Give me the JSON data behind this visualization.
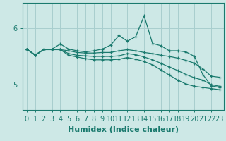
{
  "background_color": "#cde8e6",
  "grid_color": "#a8cece",
  "line_color": "#1a7a6e",
  "xlabel": "Humidex (Indice chaleur)",
  "xlabel_fontsize": 8,
  "tick_fontsize": 7,
  "yticks": [
    5,
    6
  ],
  "ylim": [
    4.55,
    6.45
  ],
  "xlim": [
    -0.5,
    23.5
  ],
  "xticks": [
    0,
    1,
    2,
    3,
    4,
    5,
    6,
    7,
    8,
    9,
    10,
    11,
    12,
    13,
    14,
    15,
    16,
    17,
    18,
    19,
    20,
    21,
    22,
    23
  ],
  "series": [
    [
      5.63,
      5.53,
      5.62,
      5.63,
      5.72,
      5.63,
      5.6,
      5.58,
      5.6,
      5.63,
      5.7,
      5.87,
      5.77,
      5.85,
      6.22,
      5.73,
      5.69,
      5.6,
      5.6,
      5.58,
      5.5,
      5.18,
      4.98,
      4.95
    ],
    [
      5.63,
      5.52,
      5.62,
      5.62,
      5.62,
      5.6,
      5.57,
      5.56,
      5.56,
      5.57,
      5.57,
      5.6,
      5.62,
      5.6,
      5.57,
      5.55,
      5.52,
      5.5,
      5.47,
      5.43,
      5.38,
      5.28,
      5.15,
      5.13
    ],
    [
      5.63,
      5.52,
      5.62,
      5.62,
      5.62,
      5.55,
      5.52,
      5.51,
      5.5,
      5.5,
      5.5,
      5.51,
      5.55,
      5.53,
      5.49,
      5.44,
      5.38,
      5.31,
      5.25,
      5.18,
      5.12,
      5.08,
      5.0,
      4.97
    ],
    [
      5.63,
      5.52,
      5.62,
      5.62,
      5.62,
      5.52,
      5.49,
      5.46,
      5.44,
      5.44,
      5.44,
      5.45,
      5.48,
      5.45,
      5.41,
      5.35,
      5.26,
      5.17,
      5.08,
      5.01,
      4.97,
      4.95,
      4.93,
      4.91
    ]
  ]
}
